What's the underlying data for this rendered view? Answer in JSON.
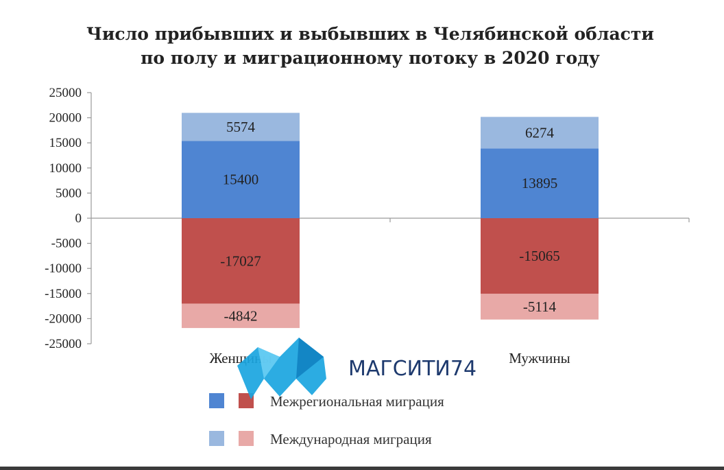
{
  "title_line1": "Число прибывших и выбывших в Челябинской области",
  "title_line2": "по полу и миграционному потоку в 2020 году",
  "watermark": "МАГСИТИ74",
  "legend": [
    {
      "label": "Межрегиональная миграция",
      "colors": [
        "#4f85d2",
        "#c0504d"
      ]
    },
    {
      "label": "Международная миграция",
      "colors": [
        "#9ab8df",
        "#e8a9a7"
      ]
    }
  ],
  "chart_data": {
    "type": "bar",
    "stacked": true,
    "categories": [
      "Женщины",
      "Мужчины"
    ],
    "series": [
      {
        "name": "Межрегиональная миграция",
        "values": [
          15400,
          13895
        ],
        "color": "#4f85d2"
      },
      {
        "name": "Международная миграция",
        "values": [
          5574,
          6274
        ],
        "color": "#9ab8df"
      },
      {
        "name": "Межрегиональная миграция",
        "values": [
          -17027,
          -15065
        ],
        "color": "#c0504d"
      },
      {
        "name": "Международная миграция",
        "values": [
          -4842,
          -5114
        ],
        "color": "#e8a9a7"
      }
    ],
    "ylim": [
      -25000,
      25000
    ],
    "yticks": [
      "25000",
      "20000",
      "15000",
      "10000",
      "5000",
      "0",
      "-5000",
      "-10000",
      "-15000",
      "-20000",
      "-25000"
    ],
    "ytick_values": [
      25000,
      20000,
      15000,
      10000,
      5000,
      0,
      -5000,
      -10000,
      -15000,
      -20000,
      -25000
    ],
    "grid": false,
    "legend_position": "bottom"
  }
}
